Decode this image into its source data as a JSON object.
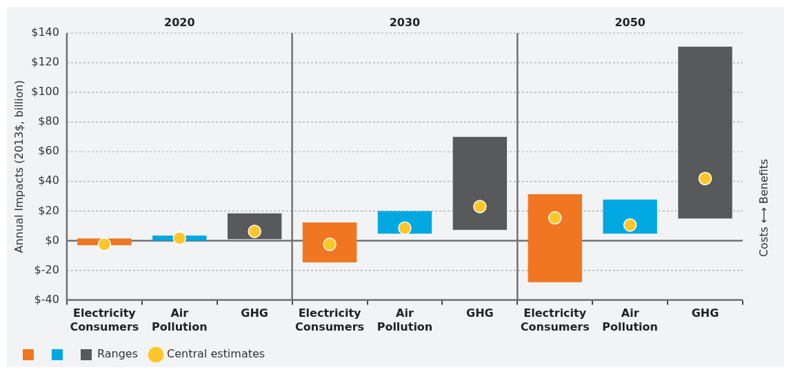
{
  "chart_data": {
    "type": "bar",
    "ylabel": "Annual Impacts (2013$, billion)",
    "y2label": "Costs ⟷ Benefits",
    "annotations": [
      "2020",
      "2030",
      "2050"
    ],
    "categories": [
      "Electricity Consumers",
      "Air Pollution",
      "GHG",
      "Electricity Consumers",
      "Air Pollution",
      "GHG",
      "Electricity Consumers",
      "Air Pollution",
      "GHG"
    ],
    "series": [
      {
        "name": "Ranges",
        "colors": [
          "#f07622",
          "#00a8e1",
          "#58595b",
          "#f07622",
          "#00a8e1",
          "#58595b",
          "#f07622",
          "#00a8e1",
          "#58595b"
        ],
        "base": [
          -3,
          0,
          1,
          -14.7,
          4.8,
          7.3,
          -28,
          4.8,
          15
        ],
        "values": [
          4.5,
          3.5,
          17.5,
          27,
          15.2,
          62.7,
          59.3,
          22.9,
          115.8
        ]
      },
      {
        "name": "Central estimates",
        "type": "scatter",
        "color": "#ffc629",
        "values": [
          -2.5,
          1.7,
          6.3,
          -2.5,
          8.5,
          23,
          15.4,
          10.6,
          41.9
        ]
      }
    ],
    "ylim": [
      -40,
      140
    ],
    "yticks": [
      {
        "value": -40,
        "label": "$-40"
      },
      {
        "value": -20,
        "label": "$-20"
      },
      {
        "value": 0,
        "label": "$0"
      },
      {
        "value": 20,
        "label": "$20"
      },
      {
        "value": 40,
        "label": "$40"
      },
      {
        "value": 60,
        "label": "$60"
      },
      {
        "value": 80,
        "label": "$80"
      },
      {
        "value": 100,
        "label": "$100"
      },
      {
        "value": 120,
        "label": "$120"
      },
      {
        "value": 140,
        "label": "$140"
      }
    ],
    "grid": "y",
    "legend": "bottom",
    "marker": "circle"
  }
}
